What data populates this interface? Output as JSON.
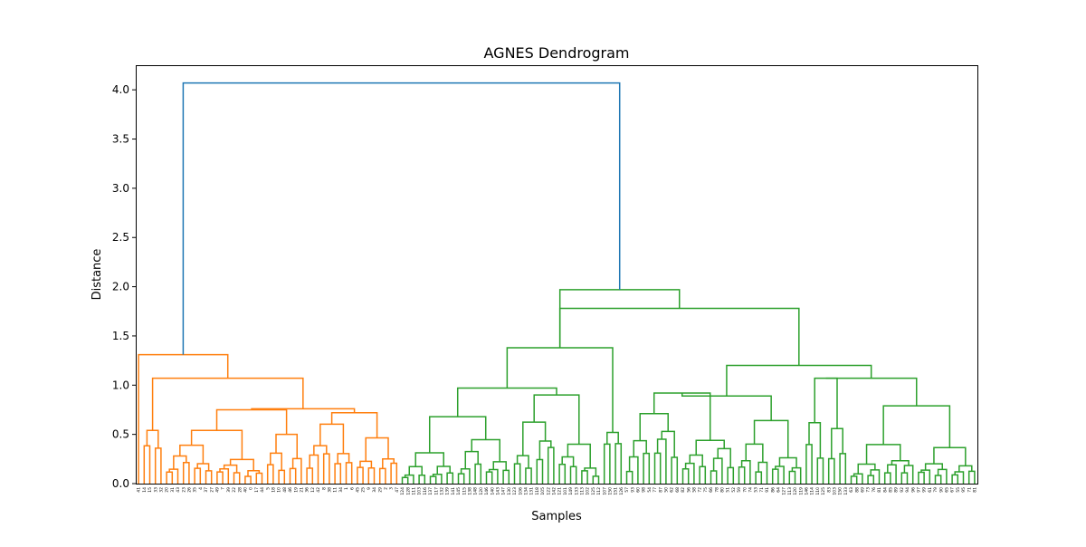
{
  "chart_data": {
    "type": "dendrogram",
    "title": "AGNES Dendrogram",
    "xlabel": "Samples",
    "ylabel": "Distance",
    "ylim": [
      0,
      4.25
    ],
    "yticks": [
      "0.0",
      "0.5",
      "1.0",
      "1.5",
      "2.0",
      "2.5",
      "3.0",
      "3.5",
      "4.0"
    ],
    "grid": false,
    "colors": {
      "cluster_1": "#ff7f0e",
      "cluster_2": "#2ca02c",
      "root": "#1f77b4"
    },
    "leaf_labels": [
      "41",
      "14",
      "15",
      "33",
      "32",
      "20",
      "31",
      "43",
      "23",
      "26",
      "35",
      "4",
      "37",
      "27",
      "49",
      "7",
      "39",
      "22",
      "28",
      "40",
      "0",
      "17",
      "44",
      "5",
      "18",
      "10",
      "48",
      "46",
      "19",
      "21",
      "36",
      "12",
      "42",
      "8",
      "38",
      "11",
      "34",
      "1",
      "6",
      "45",
      "25",
      "9",
      "34",
      "29",
      "2",
      "3",
      "47",
      "124",
      "128",
      "111",
      "103",
      "116",
      "137",
      "117",
      "132",
      "139",
      "141",
      "145",
      "115",
      "138",
      "148",
      "120",
      "146",
      "140",
      "143",
      "147",
      "130",
      "123",
      "106",
      "134",
      "131",
      "118",
      "105",
      "122",
      "142",
      "121",
      "101",
      "149",
      "133",
      "113",
      "102",
      "125",
      "112",
      "107",
      "150",
      "151",
      "126",
      "57",
      "93",
      "60",
      "98",
      "54",
      "77",
      "87",
      "50",
      "62",
      "68",
      "82",
      "56",
      "58",
      "72",
      "75",
      "66",
      "78",
      "80",
      "51",
      "52",
      "59",
      "70",
      "74",
      "53",
      "71",
      "91",
      "86",
      "64",
      "127",
      "113",
      "120",
      "119",
      "146",
      "114",
      "110",
      "125",
      "83",
      "103",
      "150",
      "133",
      "63",
      "88",
      "69",
      "73",
      "76",
      "81",
      "84",
      "85",
      "89",
      "92",
      "94",
      "96",
      "97",
      "99",
      "61",
      "79",
      "90",
      "65",
      "67",
      "55",
      "95",
      "71",
      "81"
    ],
    "merge_heights_estimated": [
      4.07,
      1.97,
      1.78,
      1.38,
      1.31,
      1.2,
      1.1,
      1.07,
      1.07,
      0.97,
      0.92,
      0.9,
      0.79,
      0.76,
      0.72,
      0.68,
      0.64,
      0.55,
      0.54,
      0.52
    ]
  }
}
